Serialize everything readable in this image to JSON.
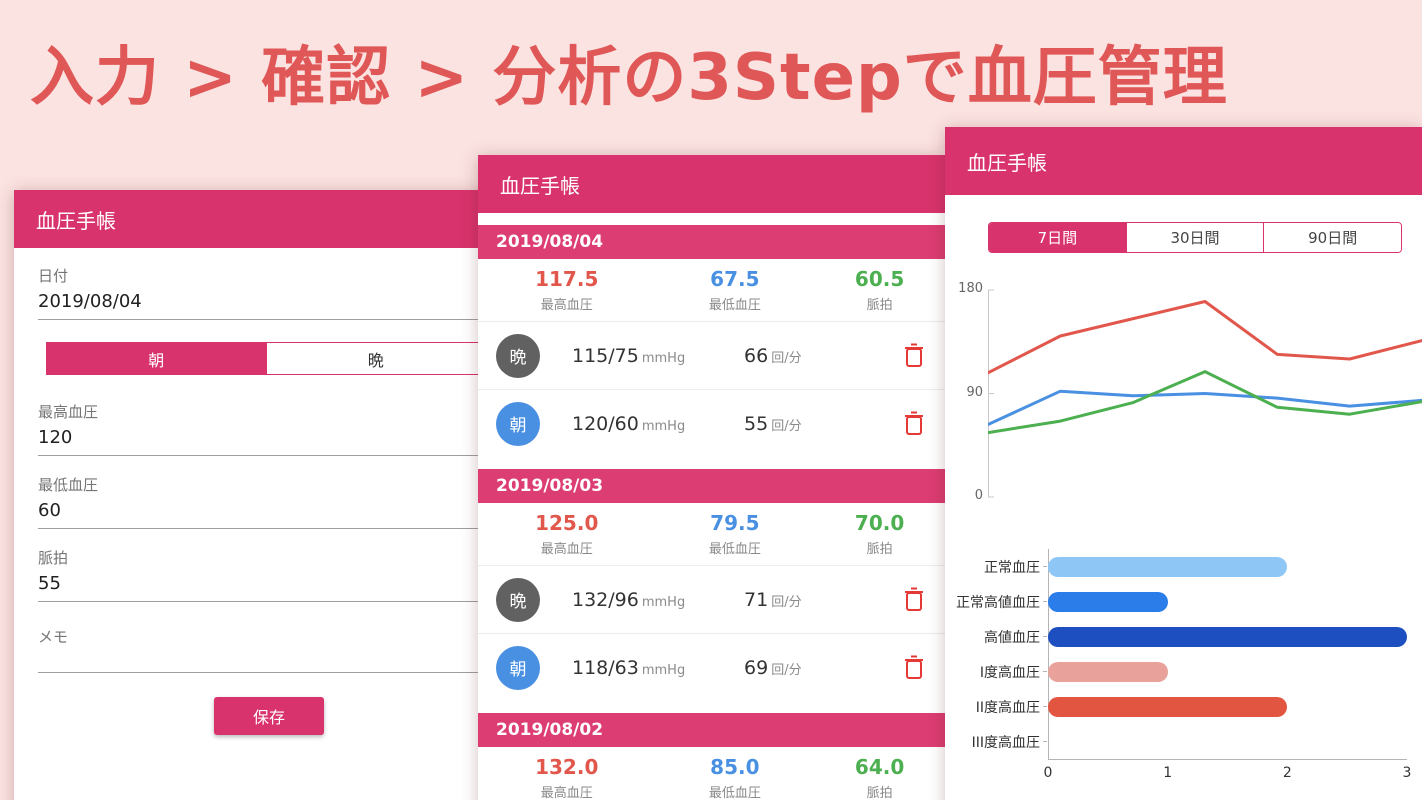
{
  "banner": {
    "title": "入力 > 確認 > 分析の3Stepで血圧管理"
  },
  "app": {
    "title": "血圧手帳"
  },
  "colors": {
    "primary_pink": "#d8336c",
    "date_bar_pink": "#dc3d72",
    "systolic_red": "#e2574c",
    "diastolic_blue": "#4a90e2",
    "pulse_green": "#4caf50",
    "banner_red": "#e05757",
    "background_pink": "#fbe3e1"
  },
  "entry_screen": {
    "date_label": "日付",
    "date_value": "2019/08/04",
    "toggle": {
      "morning": "朝",
      "evening": "晩"
    },
    "systolic_label": "最高血圧",
    "systolic_value": "120",
    "diastolic_label": "最低血圧",
    "diastolic_value": "60",
    "pulse_label": "脈拍",
    "pulse_value": "55",
    "memo_label": "メモ",
    "memo_value": "",
    "save_label": "保存"
  },
  "list_screen": {
    "summary_labels": {
      "systolic": "最高血圧",
      "diastolic": "最低血圧",
      "pulse": "脈拍"
    },
    "units": {
      "bp": "mmHg",
      "pulse": "回/分"
    },
    "groups": [
      {
        "date": "2019/08/04",
        "avg_systolic": "117.5",
        "avg_diastolic": "67.5",
        "avg_pulse": "60.5",
        "entries": [
          {
            "period": "晩",
            "bp": "115/75",
            "pulse": "66"
          },
          {
            "period": "朝",
            "bp": "120/60",
            "pulse": "55"
          }
        ]
      },
      {
        "date": "2019/08/03",
        "avg_systolic": "125.0",
        "avg_diastolic": "79.5",
        "avg_pulse": "70.0",
        "entries": [
          {
            "period": "晩",
            "bp": "132/96",
            "pulse": "71"
          },
          {
            "period": "朝",
            "bp": "118/63",
            "pulse": "69"
          }
        ]
      },
      {
        "date": "2019/08/02",
        "avg_systolic": "132.0",
        "avg_diastolic": "85.0",
        "avg_pulse": "64.0",
        "entries": []
      }
    ]
  },
  "analysis_screen": {
    "tabs": [
      {
        "label": "7日間",
        "active": true
      },
      {
        "label": "30日間",
        "active": false
      },
      {
        "label": "90日間",
        "active": false
      }
    ]
  },
  "chart_data": [
    {
      "type": "line",
      "title": "",
      "xlabel": "",
      "ylabel": "",
      "x": [
        1,
        2,
        3,
        4,
        5,
        6,
        7
      ],
      "series": [
        {
          "name": "最高血圧",
          "color": "#e2574c",
          "values": [
            108,
            140,
            155,
            170,
            124,
            120,
            136
          ]
        },
        {
          "name": "最低血圧",
          "color": "#4a90e2",
          "values": [
            63,
            92,
            88,
            90,
            86,
            79,
            84
          ]
        },
        {
          "name": "脈拍",
          "color": "#4caf50",
          "values": [
            56,
            66,
            82,
            109,
            78,
            72,
            83
          ]
        }
      ],
      "ylim": [
        0,
        180
      ],
      "yticks": [
        180,
        90,
        0
      ],
      "grid": false,
      "legend": "none"
    },
    {
      "type": "bar",
      "orientation": "horizontal",
      "title": "",
      "categories": [
        "正常血圧",
        "正常高値血圧",
        "高値血圧",
        "I度高血圧",
        "II度高血圧",
        "III度高血圧"
      ],
      "values": [
        2,
        1,
        3,
        1,
        2,
        0
      ],
      "colors": [
        "#8ec6f5",
        "#2b7de9",
        "#1d4fc0",
        "#e8a29b",
        "#e25540",
        null
      ],
      "xlim": [
        0,
        3
      ],
      "xticks": [
        0,
        1,
        2,
        3
      ],
      "grid": false,
      "legend": "none"
    }
  ]
}
